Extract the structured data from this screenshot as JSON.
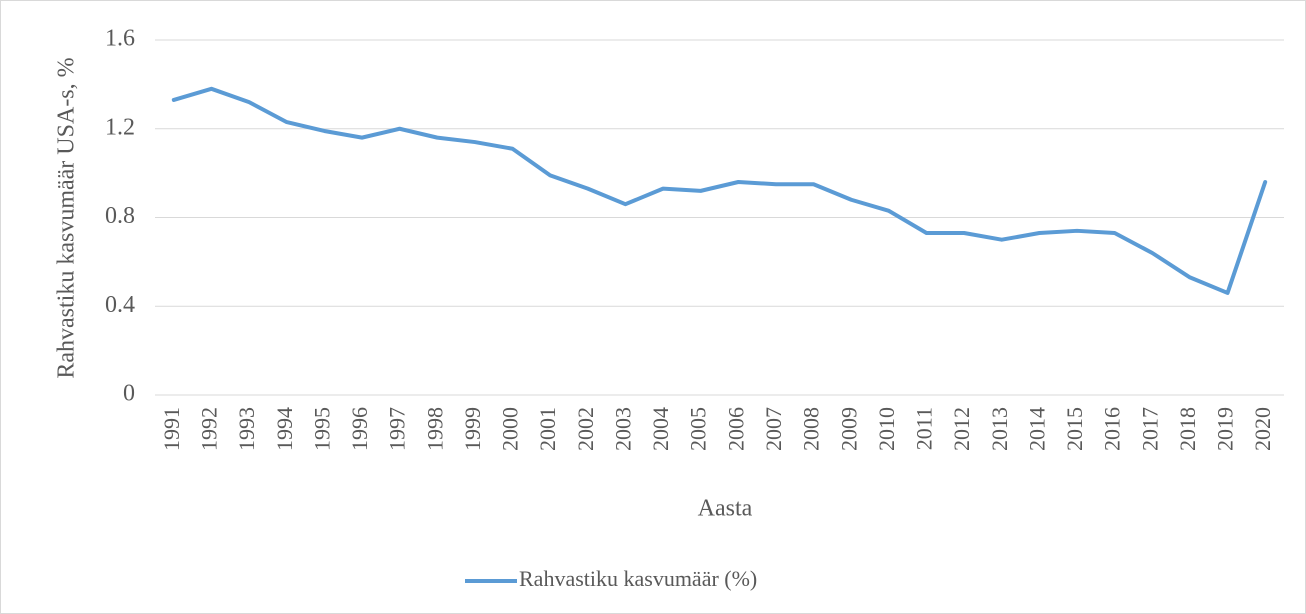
{
  "chart_data": {
    "type": "line",
    "y_label": "Rahvastiku kasvumäär USA-s, %",
    "x_label": "Aasta",
    "categories": [
      "1991",
      "1992",
      "1993",
      "1994",
      "1995",
      "1996",
      "1997",
      "1998",
      "1999",
      "2000",
      "2001",
      "2002",
      "2003",
      "2004",
      "2005",
      "2006",
      "2007",
      "2008",
      "2009",
      "2010",
      "2011",
      "2012",
      "2013",
      "2014",
      "2015",
      "2016",
      "2017",
      "2018",
      "2019",
      "2020"
    ],
    "series": [
      {
        "name": "Rahvastiku kasvumäär (%)",
        "color": "#5b9bd5",
        "values": [
          1.33,
          1.38,
          1.32,
          1.23,
          1.19,
          1.16,
          1.2,
          1.16,
          1.14,
          1.11,
          0.99,
          0.93,
          0.86,
          0.93,
          0.92,
          0.96,
          0.95,
          0.95,
          0.88,
          0.83,
          0.73,
          0.73,
          0.7,
          0.73,
          0.74,
          0.73,
          0.64,
          0.53,
          0.46,
          0.96
        ]
      }
    ],
    "ylim": [
      0,
      1.6
    ],
    "yticks": [
      0,
      0.4,
      0.8,
      1.2,
      1.6
    ],
    "grid": true,
    "legend": "bottom"
  }
}
